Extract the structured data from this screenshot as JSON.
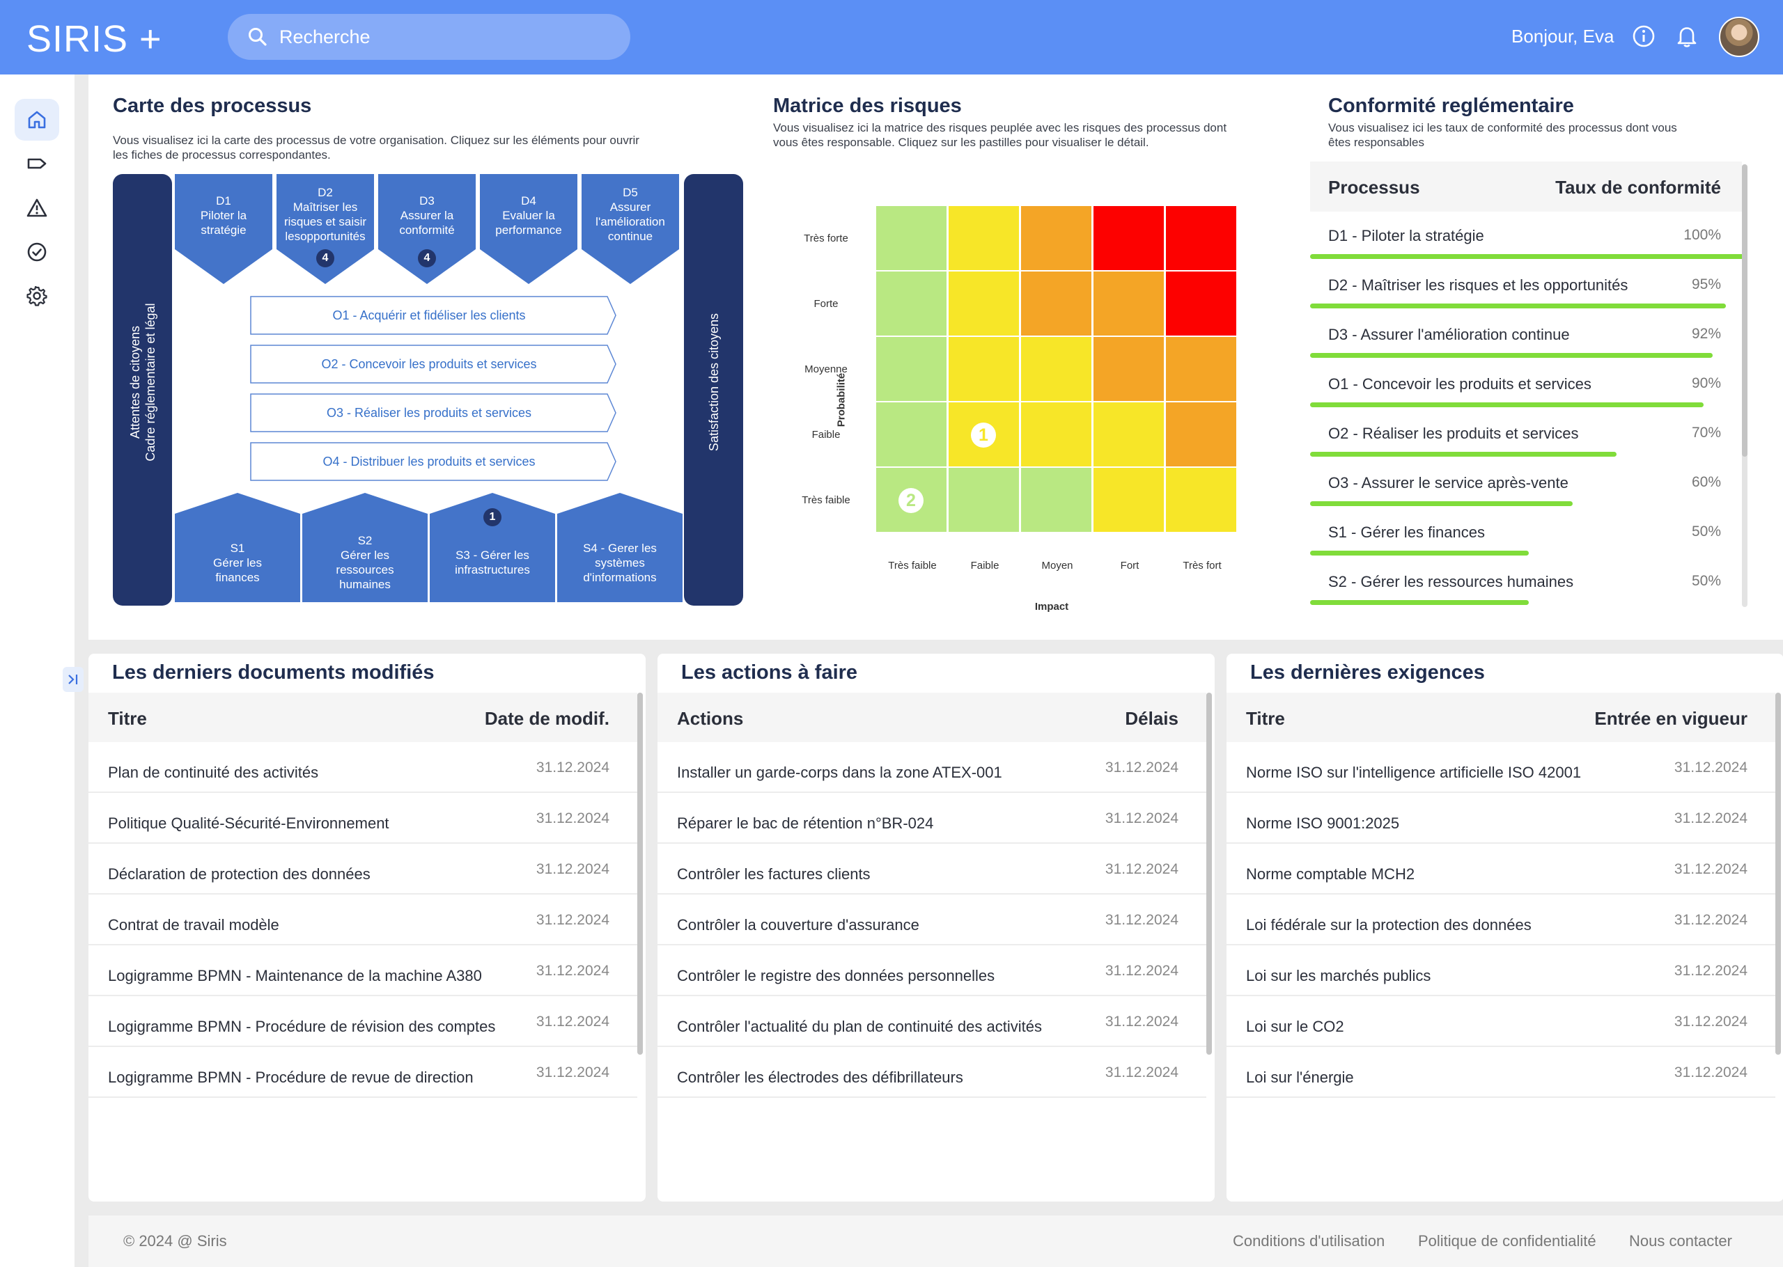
{
  "header": {
    "logo": "SIRIS +",
    "search_placeholder": "Recherche",
    "greeting": "Bonjour, Eva",
    "accent": "#5b8ff5"
  },
  "sidebar": {
    "items": [
      {
        "icon": "home-icon",
        "active": true
      },
      {
        "icon": "tag-icon"
      },
      {
        "icon": "warning-icon"
      },
      {
        "icon": "check-circle-icon"
      },
      {
        "icon": "gear-icon"
      }
    ]
  },
  "process_map": {
    "title": "Carte des processus",
    "description_1": "Vous visualisez ici la carte des processus de votre organisation. Cliquez sur les éléments pour ouvrir",
    "description_2": "les fiches de processus correspondantes.",
    "left_bar_1": "Attentes de citoyens",
    "left_bar_2": "Cadre réglementaire et légal",
    "right_bar": "Satisfaction des citoyens",
    "directions": [
      {
        "lines": [
          "D1",
          "Piloter la",
          "stratégie"
        ]
      },
      {
        "lines": [
          "D2",
          "Maîtriser les",
          "risques et saisir",
          "lesopportunités"
        ],
        "badge": "4"
      },
      {
        "lines": [
          "D3",
          "Assurer la",
          "conformité"
        ],
        "badge": "4"
      },
      {
        "lines": [
          "D4",
          "Evaluer la",
          "performance"
        ]
      },
      {
        "lines": [
          "D5",
          "Assurer",
          "l'amélioration",
          "continue"
        ]
      }
    ],
    "operations": [
      "O1 - Acquérir et fidéliser les clients",
      "O2 - Concevoir les produits et services",
      "O3 - Réaliser les produits et services",
      "O4 - Distribuer les produits et services"
    ],
    "supports": [
      {
        "lines": [
          "S1",
          "Gérer les",
          "finances"
        ]
      },
      {
        "lines": [
          "S2",
          "Gérer les",
          "ressources",
          "humaines"
        ]
      },
      {
        "lines": [
          "S3 - Gérer les",
          "infrastructures"
        ],
        "badge": "1"
      },
      {
        "lines": [
          "S4 - Gerer les",
          "systèmes",
          "d'informations"
        ]
      }
    ]
  },
  "risk_matrix": {
    "title": "Matrice des risques",
    "description_1": "Vous visualisez ici la matrice des risques peuplée avec les risques des processus dont",
    "description_2": "vous êtes responsable. Cliquez sur les pastilles pour visualiser le détail.",
    "y_axis_label": "Probabilité",
    "x_axis_label": "Impact",
    "rows": [
      "Très forte",
      "Forte",
      "Moyenne",
      "Faible",
      "Très faible"
    ],
    "cols": [
      "Très faible",
      "Faible",
      "Moyen",
      "Fort",
      "Très fort"
    ],
    "colors": {
      "green": "#b9e882",
      "yellow": "#f7e628",
      "orange": "#f4a526",
      "red": "#fd0100"
    },
    "grid": [
      [
        "green",
        "yellow",
        "orange",
        "red",
        "red"
      ],
      [
        "green",
        "yellow",
        "orange",
        "orange",
        "red"
      ],
      [
        "green",
        "yellow",
        "yellow",
        "orange",
        "orange"
      ],
      [
        "green",
        "yellow",
        "yellow",
        "yellow",
        "orange"
      ],
      [
        "green",
        "green",
        "green",
        "yellow",
        "yellow"
      ]
    ],
    "markers": [
      {
        "label": "1",
        "row": 3,
        "col": 1
      },
      {
        "label": "2",
        "row": 4,
        "col": 0
      }
    ]
  },
  "compliance": {
    "title": "Conformité reglémentaire",
    "description_1": "Vous visualisez ici les taux de conformité des processus dont vous",
    "description_2": "êtes responsables",
    "col_process": "Processus",
    "col_rate": "Taux de conformité",
    "rows": [
      {
        "name": "D1 - Piloter la stratégie",
        "pct": "100%",
        "value": 100
      },
      {
        "name": "D2 - Maîtriser les risques et les opportunités",
        "pct": "95%",
        "value": 95
      },
      {
        "name": "D3 - Assurer l'amélioration continue",
        "pct": "92%",
        "value": 92
      },
      {
        "name": " O1 - Concevoir les produits et services",
        "pct": "90%",
        "value": 90
      },
      {
        "name": "O2 - Réaliser les produits et services",
        "pct": "70%",
        "value": 70
      },
      {
        "name": "O3 - Assurer le service après-vente",
        "pct": "60%",
        "value": 60
      },
      {
        "name": "S1 - Gérer les finances",
        "pct": "50%",
        "value": 50
      },
      {
        "name": "S2 - Gérer les ressources humaines",
        "pct": "50%",
        "value": 50
      }
    ]
  },
  "cards": [
    {
      "title": "Les derniers documents modifiés",
      "col_left": "Titre",
      "col_right": "Date de modif.",
      "rows": [
        {
          "t": "Plan de continuité des activités",
          "d": "31.12.2024"
        },
        {
          "t": "Politique Qualité-Sécurité-Environnement",
          "d": "31.12.2024"
        },
        {
          "t": "Déclaration de protection des données",
          "d": "31.12.2024"
        },
        {
          "t": "Contrat de travail modèle",
          "d": "31.12.2024"
        },
        {
          "t": "Logigramme BPMN - Maintenance de la machine A380",
          "d": "31.12.2024"
        },
        {
          "t": "Logigramme BPMN - Procédure de révision des comptes",
          "d": "31.12.2024"
        },
        {
          "t": "Logigramme BPMN - Procédure de revue de direction",
          "d": "31.12.2024"
        }
      ]
    },
    {
      "title": "Les actions à faire",
      "col_left": "Actions",
      "col_right": "Délais",
      "rows": [
        {
          "t": "Installer un garde-corps dans la zone ATEX-001",
          "d": "31.12.2024"
        },
        {
          "t": "Réparer le bac de rétention n°BR-024",
          "d": "31.12.2024"
        },
        {
          "t": "Contrôler les factures clients",
          "d": "31.12.2024"
        },
        {
          "t": "Contrôler la couverture d'assurance",
          "d": "31.12.2024"
        },
        {
          "t": "Contrôler le registre des données personnelles",
          "d": "31.12.2024"
        },
        {
          "t": "Contrôler l'actualité du plan de continuité des activités",
          "d": "31.12.2024"
        },
        {
          "t": "Contrôler les électrodes des défibrillateurs",
          "d": "31.12.2024"
        }
      ]
    },
    {
      "title": "Les dernières exigences",
      "col_left": "Titre",
      "col_right": "Entrée en vigueur",
      "rows": [
        {
          "t": "Norme ISO sur l'intelligence artificielle ISO 42001",
          "d": "31.12.2024"
        },
        {
          "t": "Norme ISO 9001:2025",
          "d": "31.12.2024"
        },
        {
          "t": "Norme comptable MCH2",
          "d": "31.12.2024"
        },
        {
          "t": "Loi fédérale sur la protection des données",
          "d": "31.12.2024"
        },
        {
          "t": "Loi sur les marchés publics",
          "d": "31.12.2024"
        },
        {
          "t": "Loi sur le CO2",
          "d": "31.12.2024"
        },
        {
          "t": "Loi sur l'énergie",
          "d": "31.12.2024"
        }
      ]
    }
  ],
  "footer": {
    "copyright": "© 2024 @ Siris",
    "links": [
      "Conditions d'utilisation",
      "Politique de confidentialité",
      "Nous contacter"
    ]
  }
}
